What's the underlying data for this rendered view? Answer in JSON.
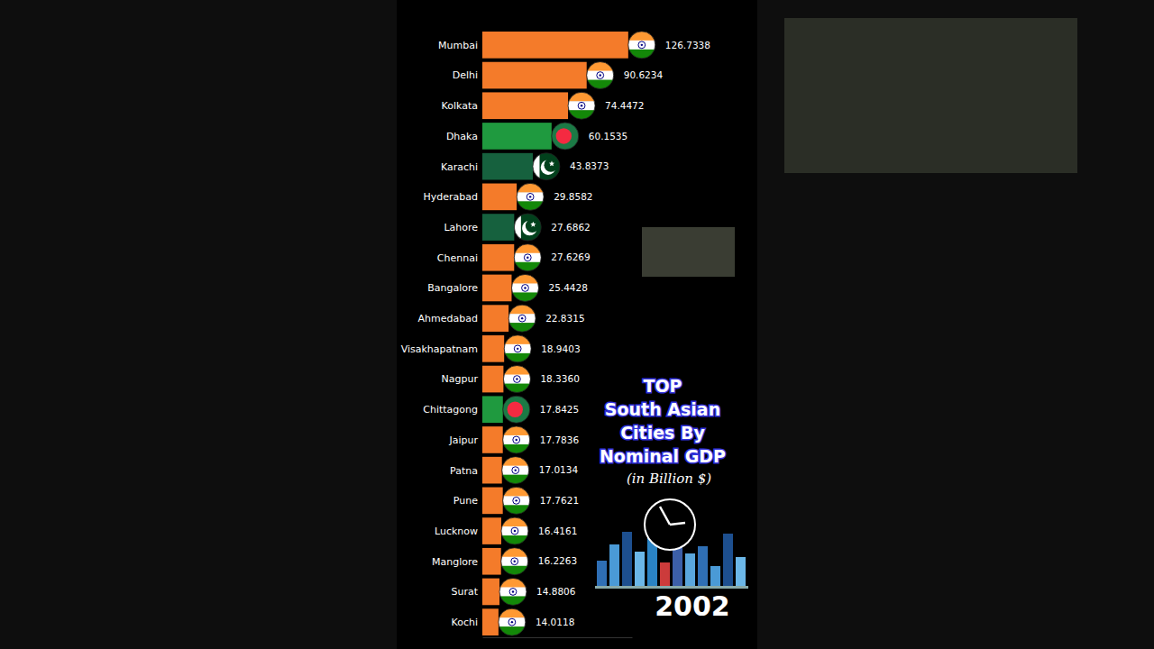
{
  "chart_data": {
    "type": "bar",
    "orientation": "horizontal",
    "title": [
      "TOP",
      "South Asian",
      "Cities By",
      "Nominal GDP"
    ],
    "subtitle": "(in Billion $)",
    "annotations": [
      "2002"
    ],
    "categories": [
      "Mumbai",
      "Delhi",
      "Kolkata",
      "Dhaka",
      "Karachi",
      "Hyderabad",
      "Lahore",
      "Chennai",
      "Bangalore",
      "Ahmedabad",
      "Visakhapatnam",
      "Nagpur",
      "Chittagong",
      "Jaipur",
      "Patna",
      "Pune",
      "Lucknow",
      "Manglore",
      "Surat",
      "Kochi"
    ],
    "values": [
      126.7338,
      90.6234,
      74.4472,
      60.1535,
      43.8373,
      29.8582,
      27.6862,
      27.6269,
      25.4428,
      22.8315,
      18.9403,
      18.336,
      17.8425,
      17.7836,
      17.0134,
      17.7621,
      16.4161,
      16.2263,
      14.8806,
      14.0118
    ],
    "value_labels": [
      "126.7338",
      "90.6234",
      "74.4472",
      "60.1535",
      "43.8373",
      "29.8582",
      "27.6862",
      "27.6269",
      "25.4428",
      "22.8315",
      "18.9403",
      "18.3360",
      "17.8425",
      "17.7836",
      "17.0134",
      "17.7621",
      "16.4161",
      "16.2263",
      "14.8806",
      "14.0118"
    ],
    "colors": [
      "#f47b2a",
      "#f47b2a",
      "#f47b2a",
      "#1f9a3f",
      "#16613e",
      "#f47b2a",
      "#16613e",
      "#f47b2a",
      "#f47b2a",
      "#f47b2a",
      "#f47b2a",
      "#f47b2a",
      "#1f9a3f",
      "#f47b2a",
      "#f47b2a",
      "#f47b2a",
      "#f47b2a",
      "#f47b2a",
      "#f47b2a",
      "#f47b2a"
    ],
    "xlim": [
      0,
      130
    ],
    "xticks": [],
    "data_labels": true,
    "tick_labels": false,
    "grid": false
  }
}
